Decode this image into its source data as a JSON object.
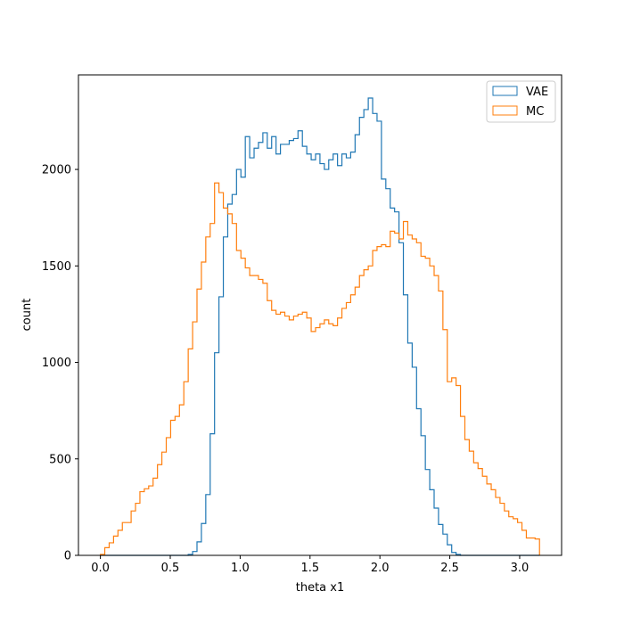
{
  "chart_data": {
    "type": "histogram",
    "xlabel": "theta x1",
    "ylabel": "count",
    "xlim": [
      -0.157,
      3.3
    ],
    "ylim": [
      0,
      2490
    ],
    "xticks": [
      0.0,
      0.5,
      1.0,
      1.5,
      2.0,
      2.5,
      3.0
    ],
    "xtick_labels": [
      "0.0",
      "0.5",
      "1.0",
      "1.5",
      "2.0",
      "2.5",
      "3.0"
    ],
    "yticks": [
      0,
      500,
      1000,
      1500,
      2000
    ],
    "ytick_labels": [
      "0",
      "500",
      "1000",
      "1500",
      "2000"
    ],
    "grid": false,
    "legend_position": "top-right",
    "bin_start": 0.0,
    "bin_width": 0.03142,
    "series": [
      {
        "name": "VAE",
        "color": "#1f77b4",
        "values": [
          0,
          0,
          0,
          0,
          0,
          0,
          0,
          0,
          0,
          0,
          0,
          0,
          0,
          0,
          0,
          0,
          0,
          0,
          0,
          0,
          5,
          20,
          70,
          165,
          315,
          630,
          1050,
          1340,
          1650,
          1820,
          1870,
          2000,
          1960,
          2170,
          2060,
          2110,
          2140,
          2190,
          2110,
          2170,
          2080,
          2130,
          2130,
          2150,
          2160,
          2200,
          2120,
          2080,
          2050,
          2080,
          2030,
          2000,
          2050,
          2080,
          2020,
          2080,
          2060,
          2090,
          2180,
          2270,
          2310,
          2370,
          2290,
          2250,
          1950,
          1900,
          1800,
          1780,
          1620,
          1350,
          1100,
          975,
          760,
          620,
          445,
          340,
          245,
          160,
          110,
          55,
          15,
          5,
          0,
          0,
          0,
          0,
          0,
          0,
          0,
          0,
          0,
          0,
          0,
          0,
          0,
          0,
          0,
          0,
          0,
          0
        ]
      },
      {
        "name": "MC",
        "color": "#ff7f0e",
        "values": [
          5,
          40,
          65,
          100,
          130,
          170,
          170,
          230,
          270,
          330,
          345,
          360,
          400,
          470,
          535,
          610,
          700,
          720,
          780,
          900,
          1070,
          1210,
          1380,
          1520,
          1650,
          1720,
          1930,
          1880,
          1800,
          1770,
          1720,
          1580,
          1540,
          1490,
          1450,
          1450,
          1430,
          1410,
          1320,
          1270,
          1250,
          1260,
          1240,
          1220,
          1240,
          1250,
          1260,
          1230,
          1160,
          1180,
          1200,
          1220,
          1200,
          1190,
          1230,
          1280,
          1310,
          1350,
          1390,
          1450,
          1480,
          1500,
          1580,
          1600,
          1610,
          1600,
          1680,
          1670,
          1640,
          1730,
          1660,
          1640,
          1620,
          1550,
          1540,
          1500,
          1450,
          1370,
          1170,
          900,
          920,
          880,
          720,
          600,
          540,
          480,
          450,
          410,
          370,
          340,
          300,
          270,
          230,
          200,
          190,
          170,
          130,
          90,
          90,
          85
        ]
      }
    ]
  }
}
